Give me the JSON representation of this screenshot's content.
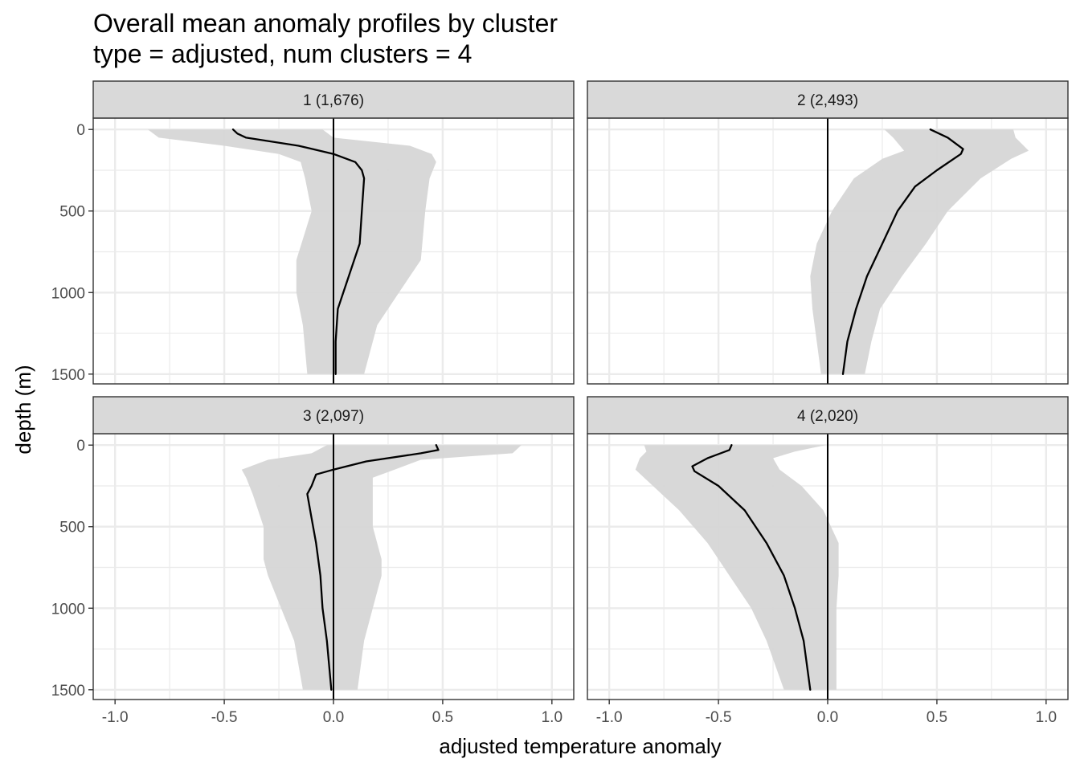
{
  "chart_data": {
    "type": "area",
    "title": "Overall mean anomaly profiles by cluster",
    "subtitle": "type = adjusted, num clusters = 4",
    "xlabel": "adjusted temperature anomaly",
    "ylabel": "depth (m)",
    "xlim": [
      -1.1,
      1.1
    ],
    "ylim": [
      1560,
      -70
    ],
    "x_ticks": [
      -1.0,
      -0.5,
      0.0,
      0.5,
      1.0
    ],
    "x_tick_labels": [
      "-1.0",
      "-0.5",
      "0.0",
      "0.5",
      "1.0"
    ],
    "y_ticks": [
      0,
      500,
      1000,
      1500
    ],
    "y_tick_labels": [
      "0",
      "500",
      "1000",
      "1500"
    ],
    "y_reversed": true,
    "grid": true,
    "reference_line_x": 0,
    "colors": {
      "ribbon": "#d6d6d6",
      "line": "#000000",
      "strip_bg": "#d9d9d9",
      "border": "#333333",
      "grid": "#ebebeb"
    },
    "panels": [
      {
        "label": "1 (1,676)",
        "mean": {
          "depth": [
            0,
            25,
            50,
            100,
            150,
            200,
            250,
            300,
            500,
            700,
            900,
            1100,
            1300,
            1500
          ],
          "value": [
            -0.46,
            -0.44,
            -0.4,
            -0.16,
            0.0,
            0.1,
            0.13,
            0.14,
            0.13,
            0.12,
            0.07,
            0.02,
            0.01,
            0.01
          ]
        },
        "band": {
          "depth": [
            0,
            20,
            50,
            100,
            150,
            200,
            300,
            500,
            800,
            1000,
            1200,
            1500
          ],
          "lower": [
            -0.85,
            -0.83,
            -0.8,
            -0.5,
            -0.25,
            -0.15,
            -0.13,
            -0.1,
            -0.17,
            -0.17,
            -0.14,
            -0.12
          ],
          "upper": [
            -0.05,
            -0.03,
            0.0,
            0.35,
            0.45,
            0.47,
            0.44,
            0.42,
            0.4,
            0.3,
            0.2,
            0.14
          ]
        }
      },
      {
        "label": "2 (2,493)",
        "mean": {
          "depth": [
            0,
            50,
            120,
            150,
            250,
            350,
            500,
            700,
            900,
            1100,
            1300,
            1500
          ],
          "value": [
            0.47,
            0.55,
            0.62,
            0.61,
            0.5,
            0.4,
            0.32,
            0.25,
            0.18,
            0.13,
            0.09,
            0.07
          ]
        },
        "band": {
          "depth": [
            0,
            50,
            130,
            180,
            300,
            500,
            700,
            900,
            1100,
            1300,
            1500
          ],
          "lower": [
            0.26,
            0.3,
            0.35,
            0.25,
            0.12,
            0.02,
            -0.05,
            -0.08,
            -0.07,
            -0.05,
            -0.03
          ],
          "upper": [
            0.85,
            0.86,
            0.92,
            0.84,
            0.7,
            0.55,
            0.45,
            0.34,
            0.24,
            0.2,
            0.17
          ]
        }
      },
      {
        "label": "3 (2,097)",
        "mean": {
          "depth": [
            0,
            30,
            50,
            100,
            150,
            180,
            250,
            300,
            450,
            600,
            800,
            1000,
            1200,
            1500
          ],
          "value": [
            0.47,
            0.48,
            0.4,
            0.15,
            0.0,
            -0.08,
            -0.1,
            -0.12,
            -0.1,
            -0.08,
            -0.06,
            -0.05,
            -0.03,
            -0.01
          ]
        },
        "band": {
          "depth": [
            0,
            50,
            90,
            150,
            200,
            300,
            500,
            700,
            800,
            1000,
            1200,
            1500
          ],
          "lower": [
            -0.03,
            -0.1,
            -0.3,
            -0.42,
            -0.4,
            -0.37,
            -0.32,
            -0.32,
            -0.3,
            -0.24,
            -0.18,
            -0.14
          ],
          "upper": [
            0.86,
            0.82,
            0.4,
            0.28,
            0.18,
            0.18,
            0.18,
            0.22,
            0.22,
            0.18,
            0.14,
            0.11
          ]
        }
      },
      {
        "label": "4 (2,020)",
        "mean": {
          "depth": [
            0,
            30,
            80,
            130,
            160,
            250,
            400,
            600,
            800,
            1000,
            1200,
            1500
          ],
          "value": [
            -0.44,
            -0.45,
            -0.55,
            -0.62,
            -0.61,
            -0.5,
            -0.38,
            -0.28,
            -0.2,
            -0.15,
            -0.11,
            -0.08
          ]
        },
        "band": {
          "depth": [
            0,
            40,
            80,
            150,
            250,
            400,
            600,
            800,
            1000,
            1200,
            1500
          ],
          "lower": [
            -0.84,
            -0.83,
            -0.86,
            -0.88,
            -0.8,
            -0.68,
            -0.55,
            -0.45,
            -0.35,
            -0.28,
            -0.2
          ],
          "upper": [
            -0.01,
            -0.15,
            -0.25,
            -0.22,
            -0.12,
            -0.02,
            0.05,
            0.05,
            0.04,
            0.04,
            0.04
          ]
        }
      }
    ]
  }
}
